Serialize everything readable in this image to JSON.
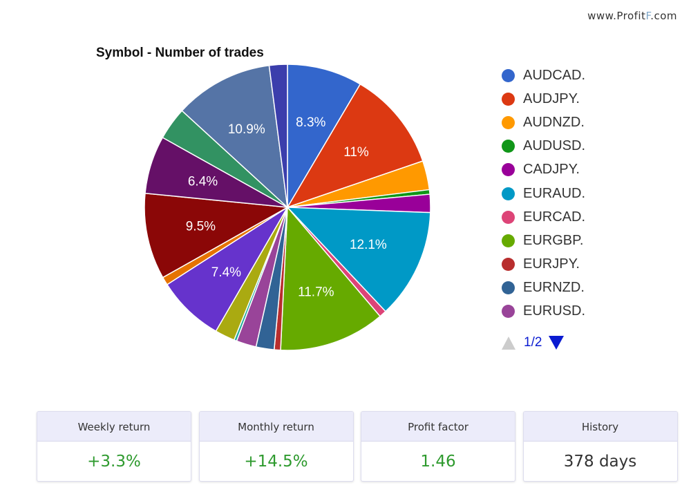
{
  "watermark": {
    "prefix": "www.Profit",
    "mark": "F",
    "suffix": ".com"
  },
  "chart_data": {
    "type": "pie",
    "title": "Symbol - Number of trades",
    "slices": [
      {
        "name": "AUDCAD.",
        "value": 8.3,
        "color": "#3366cc",
        "label": "8.3%"
      },
      {
        "name": "AUDJPY.",
        "value": 11.0,
        "color": "#dc3912",
        "label": "11%"
      },
      {
        "name": "AUDNZD.",
        "value": 3.2,
        "color": "#ff9900",
        "label": ""
      },
      {
        "name": "AUDUSD.",
        "value": 0.5,
        "color": "#109618",
        "label": ""
      },
      {
        "name": "CADJPY.",
        "value": 2.0,
        "color": "#990099",
        "label": ""
      },
      {
        "name": "EURAUD.",
        "value": 12.1,
        "color": "#0099c6",
        "label": "12.1%"
      },
      {
        "name": "EURCAD.",
        "value": 0.8,
        "color": "#dd4477",
        "label": ""
      },
      {
        "name": "EURGBP.",
        "value": 11.7,
        "color": "#66aa00",
        "label": "11.7%"
      },
      {
        "name": "EURJPY.",
        "value": 0.7,
        "color": "#b82e2e",
        "label": ""
      },
      {
        "name": "EURNZD.",
        "value": 2.0,
        "color": "#316395",
        "label": ""
      },
      {
        "name": "EURUSD.",
        "value": 2.2,
        "color": "#994499",
        "label": ""
      },
      {
        "name": "",
        "value": 0.3,
        "color": "#22aa99",
        "label": ""
      },
      {
        "name": "",
        "value": 2.2,
        "color": "#aaaa11",
        "label": ""
      },
      {
        "name": "",
        "value": 7.4,
        "color": "#6633cc",
        "label": "7.4%"
      },
      {
        "name": "",
        "value": 0.9,
        "color": "#e67300",
        "label": ""
      },
      {
        "name": "",
        "value": 9.5,
        "color": "#8b0707",
        "label": "9.5%"
      },
      {
        "name": "",
        "value": 6.4,
        "color": "#651067",
        "label": "6.4%"
      },
      {
        "name": "",
        "value": 3.6,
        "color": "#329262",
        "label": ""
      },
      {
        "name": "",
        "value": 10.9,
        "color": "#5574a6",
        "label": "10.9%"
      },
      {
        "name": "",
        "value": 2.0,
        "color": "#3b3eac",
        "label": ""
      }
    ],
    "legend_position": "right",
    "legend_page": "1/2"
  },
  "stats": [
    {
      "label": "Weekly return",
      "value": "+3.3%",
      "color": "#2e9a2e"
    },
    {
      "label": "Monthly return",
      "value": "+14.5%",
      "color": "#2e9a2e"
    },
    {
      "label": "Profit factor",
      "value": "1.46",
      "color": "#2e9a2e"
    },
    {
      "label": "History",
      "value": "378 days",
      "color": "#333333"
    }
  ]
}
